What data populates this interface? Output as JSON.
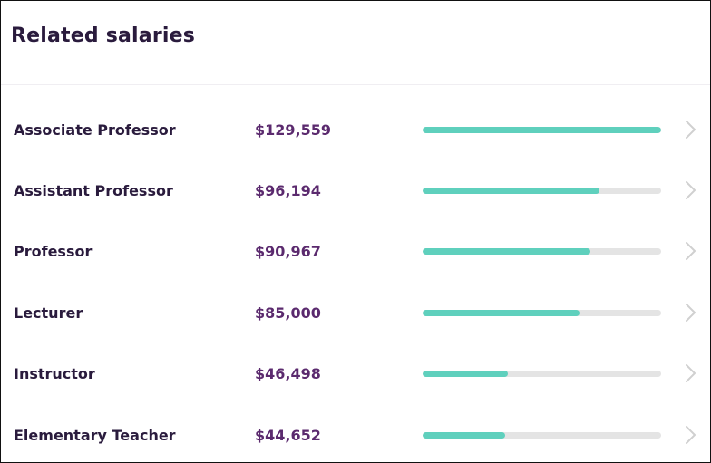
{
  "card": {
    "title": "Related salaries"
  },
  "colors": {
    "bar_fill": "#5fd0bd",
    "bar_track": "#e4e4e4",
    "title_text": "#2a1b3d",
    "salary_text": "#5b2a6e",
    "chevron": "#d0d0d0"
  },
  "salaries": [
    {
      "job": "Associate Professor",
      "salary": "$129,559",
      "level": 1.0
    },
    {
      "job": "Assistant Professor",
      "salary": "$96,194",
      "level": 0.742
    },
    {
      "job": "Professor",
      "salary": "$90,967",
      "level": 0.702
    },
    {
      "job": "Lecturer",
      "salary": "$85,000",
      "level": 0.656
    },
    {
      "job": "Instructor",
      "salary": "$46,498",
      "level": 0.359
    },
    {
      "job": "Elementary Teacher",
      "salary": "$44,652",
      "level": 0.345
    }
  ],
  "row_icon": "chevron-right-icon"
}
